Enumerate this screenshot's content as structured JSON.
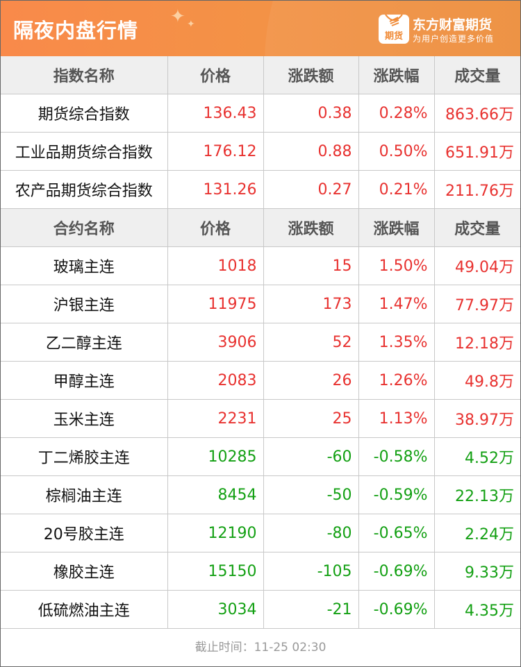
{
  "header": {
    "title": "隔夜内盘行情",
    "brand": "东方财富期货",
    "slogan": "为用户创造更多价值",
    "logo_text": "期货"
  },
  "colors": {
    "up": "#e8312f",
    "down": "#13a013",
    "accent": "#f39246"
  },
  "index_table": {
    "columns": [
      "指数名称",
      "价格",
      "涨跌额",
      "涨跌幅",
      "成交量"
    ],
    "rows": [
      {
        "name": "期货综合指数",
        "price": "136.43",
        "change": "0.38",
        "pct": "0.28%",
        "volume": "863.66万",
        "dir": "up"
      },
      {
        "name": "工业品期货综合指数",
        "price": "176.12",
        "change": "0.88",
        "pct": "0.50%",
        "volume": "651.91万",
        "dir": "up"
      },
      {
        "name": "农产品期货综合指数",
        "price": "131.26",
        "change": "0.27",
        "pct": "0.21%",
        "volume": "211.76万",
        "dir": "up"
      }
    ]
  },
  "contract_table": {
    "columns": [
      "合约名称",
      "价格",
      "涨跌额",
      "涨跌幅",
      "成交量"
    ],
    "rows": [
      {
        "name": "玻璃主连",
        "price": "1018",
        "change": "15",
        "pct": "1.50%",
        "volume": "49.04万",
        "dir": "up"
      },
      {
        "name": "沪银主连",
        "price": "11975",
        "change": "173",
        "pct": "1.47%",
        "volume": "77.97万",
        "dir": "up"
      },
      {
        "name": "乙二醇主连",
        "price": "3906",
        "change": "52",
        "pct": "1.35%",
        "volume": "12.18万",
        "dir": "up"
      },
      {
        "name": "甲醇主连",
        "price": "2083",
        "change": "26",
        "pct": "1.26%",
        "volume": "49.8万",
        "dir": "up"
      },
      {
        "name": "玉米主连",
        "price": "2231",
        "change": "25",
        "pct": "1.13%",
        "volume": "38.97万",
        "dir": "up"
      },
      {
        "name": "丁二烯胶主连",
        "price": "10285",
        "change": "-60",
        "pct": "-0.58%",
        "volume": "4.52万",
        "dir": "down"
      },
      {
        "name": "棕榈油主连",
        "price": "8454",
        "change": "-50",
        "pct": "-0.59%",
        "volume": "22.13万",
        "dir": "down"
      },
      {
        "name": "20号胶主连",
        "price": "12190",
        "change": "-80",
        "pct": "-0.65%",
        "volume": "2.24万",
        "dir": "down"
      },
      {
        "name": "橡胶主连",
        "price": "15150",
        "change": "-105",
        "pct": "-0.69%",
        "volume": "9.33万",
        "dir": "down"
      },
      {
        "name": "低硫燃油主连",
        "price": "3034",
        "change": "-21",
        "pct": "-0.69%",
        "volume": "4.35万",
        "dir": "down"
      }
    ]
  },
  "footer": {
    "cutoff": "截止时间：11-25 02:30"
  }
}
